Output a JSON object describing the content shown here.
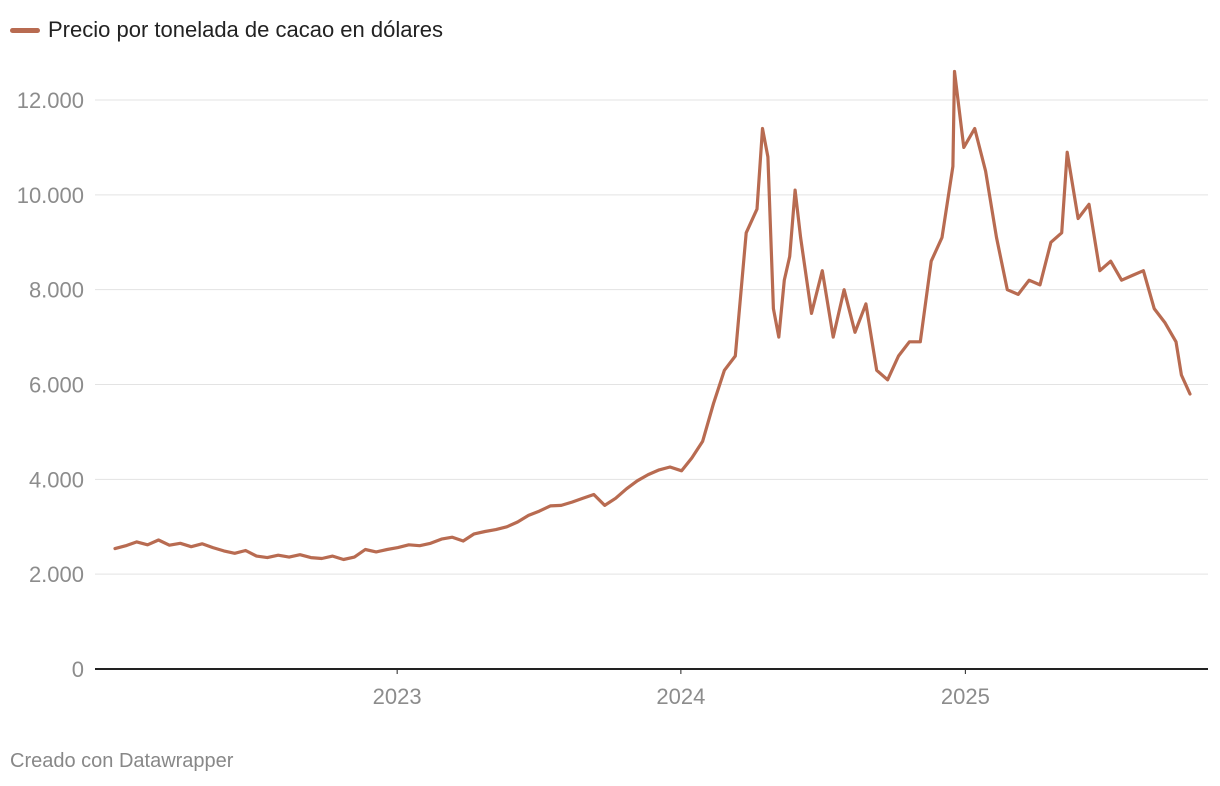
{
  "chart_data": {
    "type": "line",
    "legend_position": "top-left",
    "grid": true,
    "y_range": [
      0,
      12000
    ],
    "y_ticks": [
      0,
      2000,
      4000,
      6000,
      8000,
      10000,
      12000
    ],
    "y_tick_labels": [
      "0",
      "2.000",
      "4.000",
      "6.000",
      "8.000",
      "10.000",
      "12.000"
    ],
    "x_range": [
      "2022-01-03",
      "2025-10-17"
    ],
    "x_ticks": [
      "2023-01-01",
      "2024-01-01",
      "2025-01-01"
    ],
    "x_tick_labels": [
      "2023",
      "2024",
      "2025"
    ],
    "color": "#b86b51",
    "series": [
      {
        "name": "Precio por tonelada de cacao en dólares",
        "points": [
          [
            "2022-01-03",
            2540
          ],
          [
            "2022-01-17",
            2600
          ],
          [
            "2022-01-31",
            2680
          ],
          [
            "2022-02-14",
            2620
          ],
          [
            "2022-02-28",
            2720
          ],
          [
            "2022-03-14",
            2610
          ],
          [
            "2022-03-28",
            2650
          ],
          [
            "2022-04-11",
            2580
          ],
          [
            "2022-04-25",
            2640
          ],
          [
            "2022-05-09",
            2560
          ],
          [
            "2022-05-23",
            2490
          ],
          [
            "2022-06-06",
            2440
          ],
          [
            "2022-06-20",
            2500
          ],
          [
            "2022-07-04",
            2380
          ],
          [
            "2022-07-18",
            2350
          ],
          [
            "2022-08-01",
            2400
          ],
          [
            "2022-08-15",
            2360
          ],
          [
            "2022-08-29",
            2410
          ],
          [
            "2022-09-12",
            2350
          ],
          [
            "2022-09-26",
            2330
          ],
          [
            "2022-10-10",
            2380
          ],
          [
            "2022-10-24",
            2310
          ],
          [
            "2022-11-07",
            2360
          ],
          [
            "2022-11-21",
            2520
          ],
          [
            "2022-12-05",
            2470
          ],
          [
            "2022-12-19",
            2520
          ],
          [
            "2023-01-02",
            2560
          ],
          [
            "2023-01-16",
            2620
          ],
          [
            "2023-01-30",
            2600
          ],
          [
            "2023-02-13",
            2650
          ],
          [
            "2023-02-27",
            2740
          ],
          [
            "2023-03-13",
            2780
          ],
          [
            "2023-03-27",
            2700
          ],
          [
            "2023-04-10",
            2850
          ],
          [
            "2023-04-24",
            2900
          ],
          [
            "2023-05-08",
            2940
          ],
          [
            "2023-05-22",
            3000
          ],
          [
            "2023-06-05",
            3100
          ],
          [
            "2023-06-19",
            3240
          ],
          [
            "2023-07-03",
            3330
          ],
          [
            "2023-07-17",
            3440
          ],
          [
            "2023-07-31",
            3450
          ],
          [
            "2023-08-14",
            3520
          ],
          [
            "2023-08-28",
            3600
          ],
          [
            "2023-09-11",
            3680
          ],
          [
            "2023-09-25",
            3450
          ],
          [
            "2023-10-09",
            3600
          ],
          [
            "2023-10-23",
            3800
          ],
          [
            "2023-11-06",
            3970
          ],
          [
            "2023-11-20",
            4100
          ],
          [
            "2023-12-04",
            4200
          ],
          [
            "2023-12-18",
            4260
          ],
          [
            "2024-01-02",
            4180
          ],
          [
            "2024-01-15",
            4450
          ],
          [
            "2024-01-29",
            4800
          ],
          [
            "2024-02-12",
            5600
          ],
          [
            "2024-02-26",
            6300
          ],
          [
            "2024-03-11",
            6600
          ],
          [
            "2024-03-25",
            9200
          ],
          [
            "2024-04-08",
            9700
          ],
          [
            "2024-04-15",
            11400
          ],
          [
            "2024-04-22",
            10800
          ],
          [
            "2024-04-29",
            7600
          ],
          [
            "2024-05-06",
            7000
          ],
          [
            "2024-05-13",
            8200
          ],
          [
            "2024-05-20",
            8700
          ],
          [
            "2024-05-27",
            10100
          ],
          [
            "2024-06-03",
            9100
          ],
          [
            "2024-06-17",
            7500
          ],
          [
            "2024-07-01",
            8400
          ],
          [
            "2024-07-15",
            7000
          ],
          [
            "2024-07-29",
            8000
          ],
          [
            "2024-08-12",
            7100
          ],
          [
            "2024-08-26",
            7700
          ],
          [
            "2024-09-09",
            6300
          ],
          [
            "2024-09-23",
            6100
          ],
          [
            "2024-10-07",
            6600
          ],
          [
            "2024-10-21",
            6900
          ],
          [
            "2024-11-04",
            6900
          ],
          [
            "2024-11-18",
            8600
          ],
          [
            "2024-12-02",
            9100
          ],
          [
            "2024-12-16",
            10600
          ],
          [
            "2024-12-18",
            12600
          ],
          [
            "2024-12-30",
            11000
          ],
          [
            "2025-01-13",
            11400
          ],
          [
            "2025-01-27",
            10500
          ],
          [
            "2025-02-10",
            9100
          ],
          [
            "2025-02-24",
            8000
          ],
          [
            "2025-03-10",
            7900
          ],
          [
            "2025-03-24",
            8200
          ],
          [
            "2025-04-07",
            8100
          ],
          [
            "2025-04-21",
            9000
          ],
          [
            "2025-05-05",
            9200
          ],
          [
            "2025-05-12",
            10900
          ],
          [
            "2025-05-26",
            9500
          ],
          [
            "2025-06-09",
            9800
          ],
          [
            "2025-06-23",
            8400
          ],
          [
            "2025-07-07",
            8600
          ],
          [
            "2025-07-21",
            8200
          ],
          [
            "2025-08-04",
            8300
          ],
          [
            "2025-08-18",
            8400
          ],
          [
            "2025-09-01",
            7600
          ],
          [
            "2025-09-15",
            7300
          ],
          [
            "2025-09-29",
            6900
          ],
          [
            "2025-10-06",
            6200
          ],
          [
            "2025-10-17",
            5800
          ]
        ]
      }
    ]
  },
  "footer": {
    "credit": "Creado con Datawrapper"
  }
}
